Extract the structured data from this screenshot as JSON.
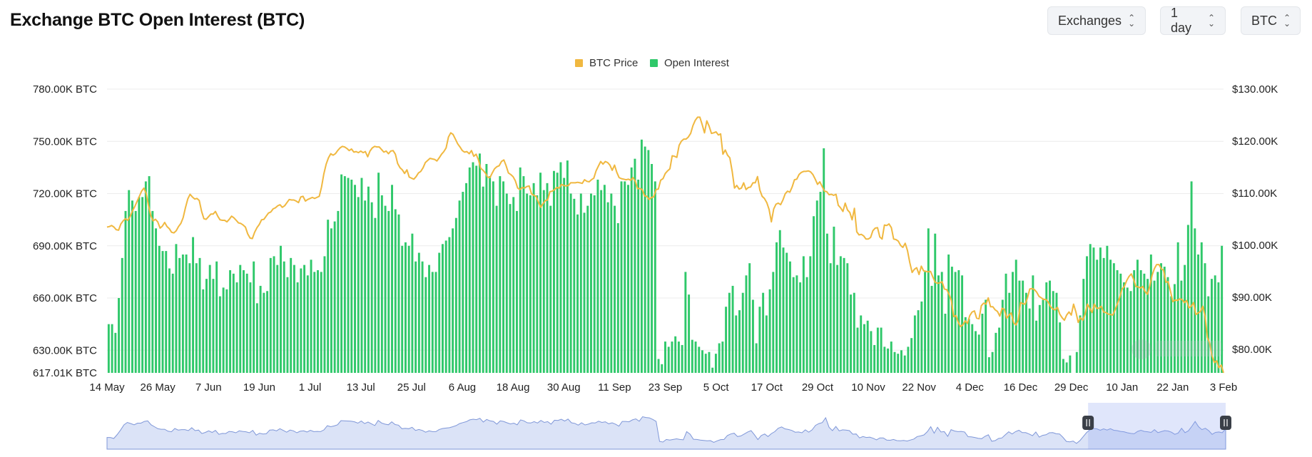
{
  "header": {
    "title": "Exchange BTC Open Interest (BTC)",
    "controls": [
      {
        "label": "Exchanges",
        "name": "exchanges-select"
      },
      {
        "label": "1 day",
        "name": "interval-select"
      },
      {
        "label": "BTC",
        "name": "unit-select"
      }
    ]
  },
  "colors": {
    "price": "#f0b840",
    "open_interest": "#2fc86a",
    "navigator_fill": "#dbe3f7",
    "navigator_line": "#7f97d8"
  },
  "chart_data": {
    "type": "bar",
    "legend": [
      "BTC Price",
      "Open Interest"
    ],
    "legend_position": "top-center",
    "grid": true,
    "x_ticks": [
      "14 May",
      "26 May",
      "7 Jun",
      "19 Jun",
      "1 Jul",
      "13 Jul",
      "25 Jul",
      "6 Aug",
      "18 Aug",
      "30 Aug",
      "11 Sep",
      "23 Sep",
      "5 Oct",
      "17 Oct",
      "29 Oct",
      "10 Nov",
      "22 Nov",
      "4 Dec",
      "16 Dec",
      "29 Dec",
      "10 Jan",
      "22 Jan",
      "3 Feb"
    ],
    "y_left": {
      "ticks": [
        "617.01K BTC",
        "630.00K BTC",
        "660.00K BTC",
        "690.00K BTC",
        "720.00K BTC",
        "750.00K BTC",
        "780.00K BTC"
      ],
      "min": 617.01,
      "max": 780
    },
    "y_right": {
      "ticks": [
        "$80.00K",
        "$90.00K",
        "$100.00K",
        "$110.00K",
        "$120.00K",
        "$130.00K"
      ],
      "min": 75.5,
      "max": 130
    },
    "series": [
      {
        "name": "Open Interest",
        "unit": "K BTC",
        "values": [
          645,
          645,
          640,
          660,
          683,
          710,
          722,
          716,
          710,
          718,
          718,
          727,
          730,
          710,
          700,
          690,
          687,
          687,
          677,
          674,
          691,
          683,
          685,
          685,
          680,
          695,
          680,
          683,
          665,
          671,
          679,
          671,
          681,
          661,
          666,
          665,
          676,
          674,
          669,
          679,
          676,
          674,
          669,
          681,
          657,
          667,
          663,
          664,
          683,
          684,
          679,
          690,
          681,
          672,
          683,
          679,
          669,
          677,
          679,
          673,
          682,
          675,
          676,
          675,
          684,
          705,
          700,
          704,
          710,
          731,
          730,
          729,
          728,
          725,
          718,
          729,
          716,
          724,
          715,
          706,
          732,
          719,
          713,
          710,
          725,
          711,
          708,
          690,
          692,
          690,
          697,
          681,
          686,
          681,
          672,
          679,
          675,
          675,
          686,
          691,
          693,
          695,
          700,
          706,
          716,
          721,
          726,
          735,
          738,
          736,
          743,
          724,
          737,
          730,
          727,
          713,
          730,
          727,
          720,
          714,
          718,
          710,
          735,
          730,
          720,
          719,
          726,
          719,
          732,
          722,
          726,
          713,
          733,
          732,
          738,
          729,
          739,
          720,
          717,
          708,
          720,
          709,
          713,
          720,
          719,
          728,
          722,
          725,
          715,
          720,
          713,
          703,
          727,
          727,
          725,
          735,
          740,
          728,
          751,
          747,
          745,
          737,
          727,
          625,
          622,
          635,
          632,
          635,
          638,
          635,
          633,
          675,
          662,
          636,
          635,
          632,
          630,
          628,
          629,
          620,
          628,
          634,
          635,
          655,
          663,
          667,
          650,
          653,
          663,
          673,
          680,
          659,
          634,
          655,
          663,
          650,
          665,
          675,
          692,
          699,
          689,
          686,
          681,
          672,
          673,
          669,
          684,
          672,
          684,
          707,
          716,
          721,
          746,
          697,
          680,
          701,
          679,
          684,
          683,
          680,
          662,
          663,
          643,
          650,
          645,
          647,
          641,
          633,
          643,
          643,
          632,
          631,
          635,
          629,
          628,
          630,
          627,
          632,
          637,
          650,
          653,
          658,
          675,
          700,
          667,
          697,
          673,
          675,
          651,
          685,
          678,
          675,
          676,
          673,
          649,
          648,
          645,
          641,
          639,
          651,
          659,
          626,
          629,
          640,
          643,
          659,
          674,
          663,
          675,
          682,
          670,
          670,
          663,
          654,
          673,
          647,
          656,
          659,
          669,
          670,
          664,
          663,
          646,
          625,
          623,
          627,
          615,
          629,
          650,
          671,
          684,
          691,
          689,
          682,
          689,
          683,
          690,
          682,
          680,
          676,
          674,
          669,
          666,
          664,
          676,
          682,
          676,
          674,
          671,
          685,
          670,
          675,
          680,
          678,
          672,
          661,
          668,
          692,
          670,
          679,
          702,
          727,
          700,
          685,
          692,
          680,
          661,
          671,
          673,
          669,
          690
        ]
      },
      {
        "name": "BTC Price",
        "unit": "$K",
        "values": [
          103.5,
          103.6,
          103.8,
          103.5,
          103.0,
          102.9,
          104.1,
          104.7,
          105.1,
          104.8,
          105.5,
          106.6,
          107.4,
          108.4,
          109.4,
          110.4,
          111.0,
          109.9,
          107.6,
          105.7,
          104.7,
          105.0,
          104.5,
          103.3,
          103.7,
          104.4,
          103.6,
          103.2,
          102.5,
          102.4,
          102.8,
          103.6,
          104.2,
          105.3,
          107.2,
          108.9,
          109.8,
          109.3,
          108.9,
          109.0,
          108.6,
          106.5,
          105.1,
          105.0,
          105.5,
          106.0,
          106.0,
          106.5,
          105.6,
          104.9,
          104.8,
          104.8,
          104.5,
          105.0,
          105.6,
          105.3,
          104.8,
          104.3,
          104.2,
          103.9,
          103.5,
          102.2,
          101.4,
          101.3,
          102.5,
          103.4,
          104.0,
          104.9,
          105.0,
          105.6,
          106.2,
          106.4,
          107.0,
          107.2,
          107.6,
          107.8,
          107.3,
          107.6,
          108.2,
          108.8,
          108.7,
          108.7,
          108.5,
          108.2,
          109.3,
          109.4,
          108.5,
          108.8,
          109.0,
          109.2,
          109.0,
          109.2,
          109.4,
          111.2,
          113.7,
          115.6,
          116.8,
          117.6,
          117.3,
          117.6,
          118.2,
          118.7,
          119.0,
          118.9,
          118.6,
          118.2,
          118.5,
          117.9,
          118.0,
          117.8,
          118.1,
          117.8,
          118.0,
          117.0,
          118.1,
          118.7,
          119.0,
          118.9,
          118.9,
          118.4,
          117.9,
          118.1,
          117.6,
          118.1,
          118.2,
          117.5,
          115.7,
          114.9,
          114.5,
          113.8,
          114.5,
          113.1,
          112.9,
          112.7,
          113.2,
          113.9,
          114.2,
          114.9,
          115.9,
          116.3,
          116.7,
          116.6,
          116.5,
          116.2,
          116.8,
          117.5,
          118.0,
          118.7,
          120.8,
          121.6,
          121.3,
          120.4,
          119.5,
          118.9,
          118.2,
          117.9,
          118.0,
          117.6,
          118.2,
          117.1,
          117.5,
          116.4,
          114.8,
          114.4,
          113.9,
          113.1,
          113.0,
          113.9,
          114.7,
          115.1,
          115.3,
          116.1,
          116.4,
          115.3,
          113.9,
          113.6,
          113.2,
          112.4,
          111.0,
          110.7,
          111.1,
          111.0,
          111.3,
          111.4,
          109.9,
          109.6,
          109.4,
          108.3,
          107.3,
          108.0,
          108.6,
          108.7,
          110.3,
          110.4,
          110.7,
          111.1,
          111.0,
          111.7,
          111.5,
          111.4,
          111.5,
          112.0,
          112.0,
          112.0,
          112.1,
          112.0,
          111.9,
          112.6,
          112.3,
          112.2,
          112.6,
          112.9,
          114.3,
          115.2,
          116.1,
          115.6,
          116.1,
          115.9,
          115.4,
          114.4,
          115.4,
          114.0,
          113.0,
          112.8,
          112.7,
          112.6,
          112.7,
          112.5,
          113.0,
          112.3,
          110.9,
          110.9,
          110.7,
          109.5,
          109.4,
          108.8,
          109.2,
          109.3,
          110.7,
          110.8,
          112.5,
          112.8,
          113.8,
          114.3,
          114.7,
          117.2,
          117.1,
          116.9,
          119.2,
          120.0,
          120.4,
          120.4,
          120.8,
          121.5,
          123.0,
          124.0,
          124.6,
          124.6,
          123.2,
          121.6,
          123.9,
          122.9,
          121.5,
          121.6,
          121.8,
          121.2,
          121.4,
          117.5,
          118.3,
          117.3,
          116.8,
          114.2,
          111.0,
          111.5,
          110.8,
          111.0,
          112.0,
          110.7,
          111.1,
          111.2,
          112.0,
          112.0,
          113.2,
          110.6,
          109.4,
          109.0,
          108.2,
          106.9,
          104.5,
          107.0,
          107.9,
          108.1,
          107.8,
          108.7,
          109.9,
          110.4,
          110.2,
          111.2,
          112.6,
          112.7,
          113.6,
          114.0,
          114.2,
          114.2,
          114.3,
          114.1,
          113.6,
          112.7,
          111.7,
          112.2,
          111.3,
          110.4,
          110.3,
          109.7,
          109.8,
          109.6,
          109.8,
          107.7,
          107.2,
          106.5,
          108.1,
          106.8,
          106.3,
          104.9,
          107.1,
          102.6,
          102.0,
          102.1,
          101.8,
          101.2,
          101.2,
          101.5,
          102.8,
          103.3,
          103.4,
          101.6,
          101.2,
          103.9,
          103.8,
          104.1,
          103.4,
          101.2,
          101.1,
          100.8,
          100.0,
          99.6,
          100.4,
          99.0,
          96.7,
          94.8,
          95.4,
          95.7,
          94.4,
          96.0,
          95.1,
          95.0,
          94.9,
          95.0,
          93.9,
          92.9,
          92.7,
          92.8,
          93.0,
          91.6,
          91.5,
          90.6,
          89.4,
          86.3,
          86.5,
          85.2,
          84.4,
          84.7,
          85.5,
          85.0,
          86.5,
          87.2,
          87.4,
          86.0,
          85.9,
          88.4,
          88.9,
          88.7,
          89.9,
          88.2,
          88.2,
          87.6,
          87.3,
          86.4,
          87.9,
          87.7,
          86.0,
          86.6,
          87.0,
          85.1,
          84.7,
          85.6,
          89.0,
          88.8,
          88.7,
          89.9,
          91.6,
          91.7,
          91.5,
          91.0,
          90.2,
          89.9,
          89.6,
          89.6,
          89.1,
          88.2,
          87.8,
          87.6,
          88.1,
          86.8,
          86.1,
          85.6,
          86.6,
          87.2,
          86.6,
          88.7,
          87.2,
          85.2,
          86.1,
          85.6,
          86.8,
          88.7,
          87.9,
          87.1,
          88.7,
          87.9,
          87.9,
          88.3,
          87.2,
          87.1,
          86.8,
          86.7,
          86.6,
          87.6,
          88.8,
          90.0,
          91.6,
          92.1,
          93.2,
          94.0,
          94.5,
          93.5,
          92.1,
          92.0,
          91.8,
          92.1,
          91.1,
          90.6,
          92.1,
          94.2,
          95.5,
          96.3,
          96.3,
          95.5,
          95.2,
          92.9,
          93.0,
          91.2,
          89.2,
          89.5,
          89.4,
          89.7,
          89.6,
          89.0,
          89.4,
          88.0,
          88.3,
          89.0,
          86.7,
          87.0,
          87.3,
          88.3,
          86.4,
          82.3,
          81.2,
          78.8,
          77.5,
          77.8,
          76.5,
          77.0,
          75.5
        ]
      }
    ],
    "navigator": {
      "range": [
        "14 May",
        "3 Feb"
      ],
      "selected_from_fraction": 0.877,
      "selected_to_fraction": 1.0
    }
  }
}
